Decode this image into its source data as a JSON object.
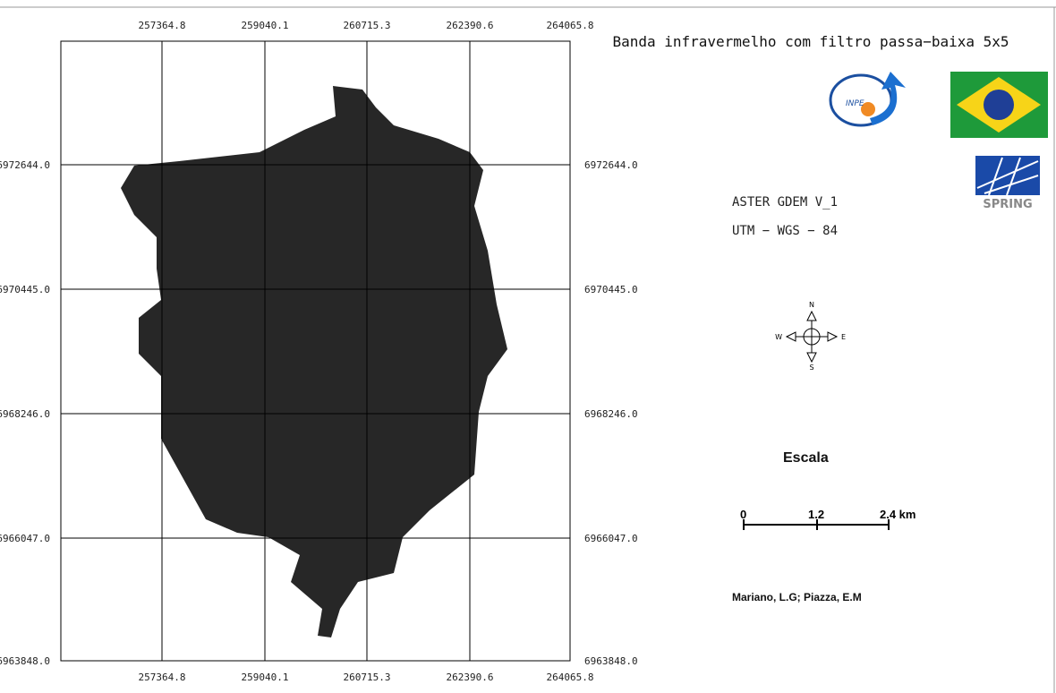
{
  "map": {
    "title": "Banda infravermelho com filtro passa−baixa 5x5",
    "x_labels": [
      "257364.8",
      "259040.1",
      "260715.3",
      "262390.6",
      "264065.8"
    ],
    "y_labels": [
      "6972644.0",
      "6970445.0",
      "6968246.0",
      "6966047.0",
      "6963848.0"
    ],
    "logos": {
      "inpe": "INPE",
      "spring": "SPRING"
    },
    "info": [
      "ASTER GDEM V_1",
      "UTM − WGS − 84"
    ],
    "compass": {
      "n": "N",
      "s": "S",
      "e": "E",
      "w": "W"
    },
    "scale": {
      "title": "Escala",
      "ticks": [
        "0",
        "1.2",
        "2.4 km"
      ]
    },
    "author": "Mariano, L.G; Piazza, E.M"
  }
}
